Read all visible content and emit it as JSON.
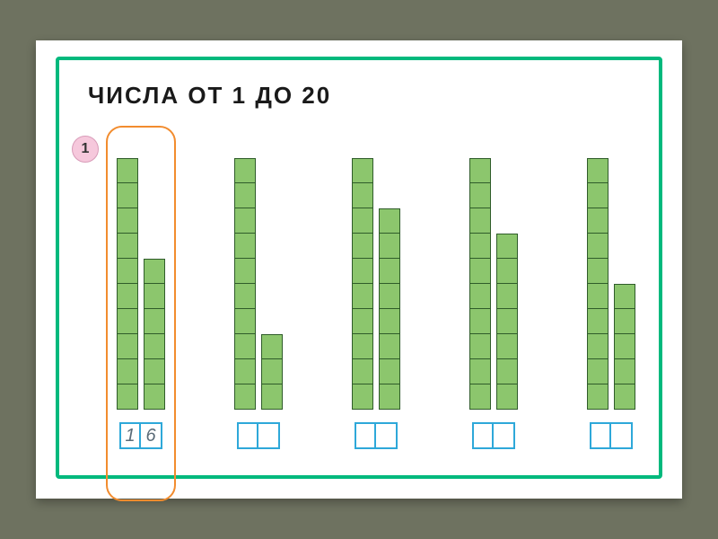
{
  "colors": {
    "page_bg": "#6e7260",
    "frame_border": "#00b97d",
    "title_color": "#1a1a1a",
    "badge_bg": "#f6c8dc",
    "badge_border": "#d89bb8",
    "badge_text": "#333333",
    "block_fill": "#8cc66d",
    "block_border": "#2f5c2a",
    "highlight_border": "#f28c2e",
    "answer_cell_border": "#2ea8d9",
    "answer_text": "#5a6b78"
  },
  "layout": {
    "block_width": 24,
    "block_height": 28,
    "tens_column_blocks": 10
  },
  "title": "ЧИСЛА  ОТ  1  ДО  20",
  "exercise_number": "1",
  "groups": [
    {
      "tens": 10,
      "ones": 6,
      "answer": [
        "1",
        "6"
      ],
      "highlighted": true
    },
    {
      "tens": 10,
      "ones": 3,
      "answer": [
        "",
        ""
      ],
      "highlighted": false
    },
    {
      "tens": 10,
      "ones": 8,
      "answer": [
        "",
        ""
      ],
      "highlighted": false
    },
    {
      "tens": 10,
      "ones": 7,
      "answer": [
        "",
        ""
      ],
      "highlighted": false
    },
    {
      "tens": 10,
      "ones": 5,
      "answer": [
        "",
        ""
      ],
      "highlighted": false
    }
  ]
}
